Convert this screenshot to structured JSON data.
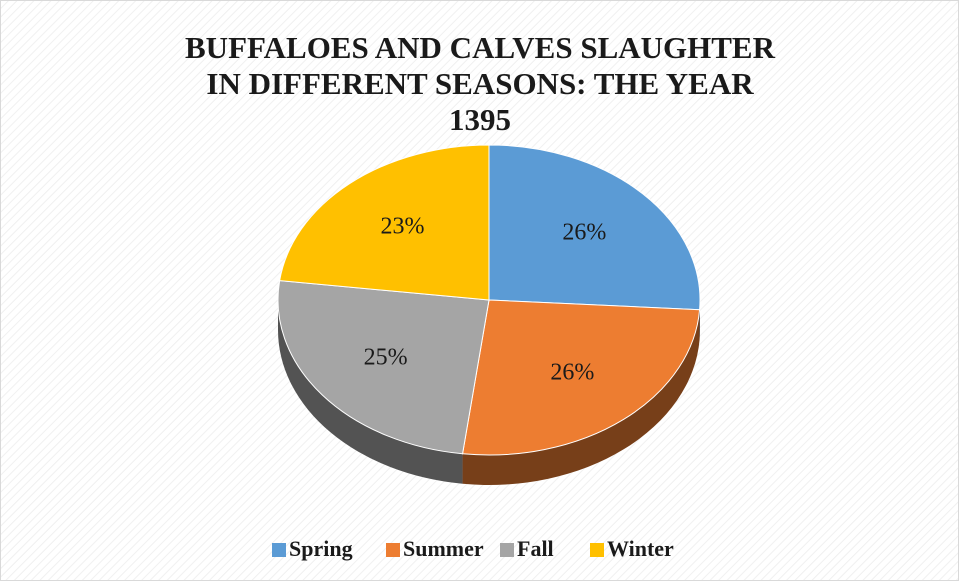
{
  "chart_data": {
    "type": "pie",
    "title": "BUFFALOES AND CALVES SLAUGHTER IN DIFFERENT SEASONS: THE YEAR 1395",
    "categories": [
      "Spring",
      "Summer",
      "Fall",
      "Winter"
    ],
    "values": [
      26,
      26,
      25,
      23
    ],
    "value_labels": [
      "26%",
      "26%",
      "25%",
      "23%"
    ],
    "colors": [
      "#5b9bd5",
      "#ed7d31",
      "#a5a5a5",
      "#ffc000"
    ],
    "legend": "bottom"
  }
}
